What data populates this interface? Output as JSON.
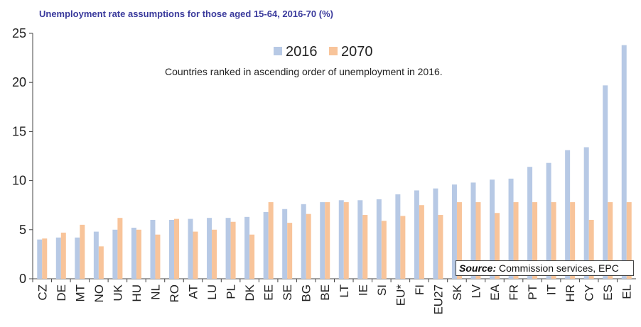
{
  "chart_data": {
    "type": "bar",
    "title": "Unemployment rate assumptions for those aged 15-64, 2016-70 (%)",
    "subtitle": "Countries ranked in ascending order of unemployment in 2016.",
    "categories": [
      "CZ",
      "DE",
      "MT",
      "NO",
      "UK",
      "HU",
      "NL",
      "RO",
      "AT",
      "LU",
      "PL",
      "DK",
      "EE",
      "SE",
      "BG",
      "BE",
      "LT",
      "IE",
      "SI",
      "EU*",
      "FI",
      "EU27",
      "SK",
      "LV",
      "EA",
      "FR",
      "PT",
      "IT",
      "HR",
      "CY",
      "ES",
      "EL"
    ],
    "series": [
      {
        "name": "2016",
        "color": "#b7c9e5",
        "values": [
          4.0,
          4.2,
          4.2,
          4.8,
          5.0,
          5.2,
          6.0,
          6.0,
          6.1,
          6.2,
          6.2,
          6.3,
          6.8,
          7.1,
          7.6,
          7.8,
          8.0,
          8.0,
          8.1,
          8.6,
          9.0,
          9.2,
          9.6,
          9.8,
          10.1,
          10.2,
          11.4,
          11.8,
          13.1,
          13.4,
          19.7,
          23.8
        ]
      },
      {
        "name": "2070",
        "color": "#f8c49a",
        "values": [
          4.1,
          4.7,
          5.5,
          3.3,
          6.2,
          5.0,
          4.5,
          6.1,
          4.8,
          5.0,
          5.8,
          4.5,
          7.8,
          5.7,
          6.6,
          7.8,
          7.8,
          6.5,
          5.9,
          6.4,
          7.5,
          6.5,
          7.8,
          7.8,
          6.7,
          7.8,
          7.8,
          7.8,
          7.8,
          6.0,
          7.8,
          7.8
        ]
      }
    ],
    "ylim": [
      0,
      25
    ],
    "yticks": [
      0,
      5,
      10,
      15,
      20,
      25
    ],
    "legend_position": "top-center",
    "grid": false,
    "source_label": "Source:",
    "source_text": "Commission services, EPC"
  }
}
